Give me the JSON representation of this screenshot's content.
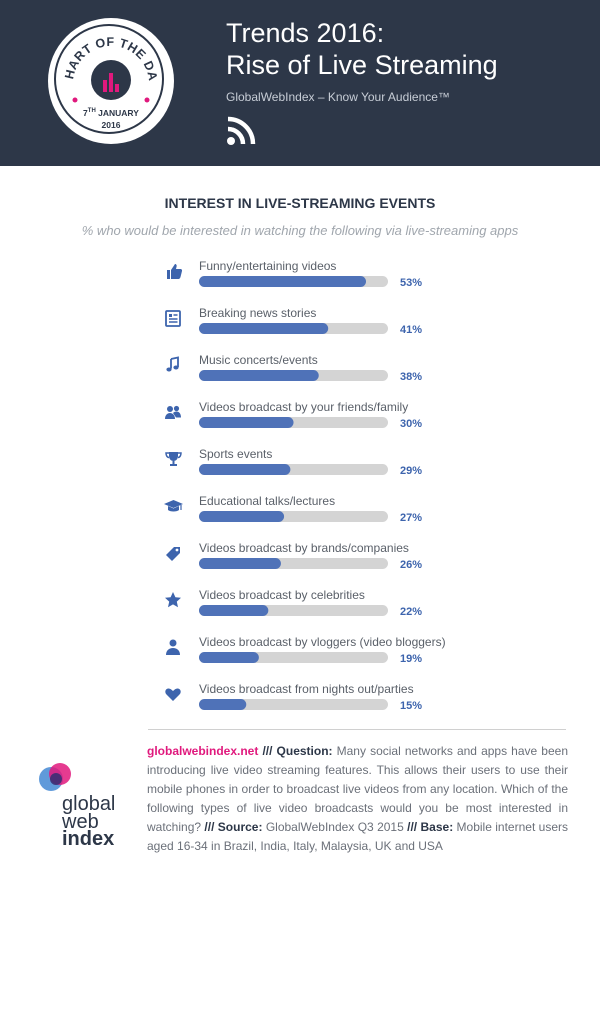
{
  "header": {
    "badge_text": "CHART OF THE DAY",
    "badge_day": "7",
    "badge_day_suffix": "TH",
    "badge_month": "JANUARY",
    "badge_year": "2016",
    "title_line1": "Trends 2016:",
    "title_line2": "Rise of Live Streaming",
    "subtitle": "GlobalWebIndex – Know Your Audience™",
    "rss_icon": "rss-icon"
  },
  "colors": {
    "header_bg": "#2d3748",
    "bar_fill": "#4f72b8",
    "bar_track": "#d4d4d4",
    "accent": "#e0197d",
    "value_text": "#3d64ad"
  },
  "chart_data": {
    "type": "bar",
    "orientation": "horizontal",
    "title": "INTEREST IN LIVE-STREAMING EVENTS",
    "subtitle": "% who would be interested in watching the following via live-streaming apps",
    "unit": "%",
    "xlim": [
      0,
      100
    ],
    "categories": [
      "Funny/entertaining videos",
      "Breaking news stories",
      "Music concerts/events",
      "Videos broadcast by your friends/family",
      "Sports events",
      "Educational talks/lectures",
      "Videos broadcast by brands/companies",
      "Videos broadcast by celebrities",
      "Videos broadcast by vloggers (video bloggers)",
      "Videos broadcast from nights out/parties"
    ],
    "values": [
      53,
      41,
      38,
      30,
      29,
      27,
      26,
      22,
      19,
      15
    ],
    "value_labels": [
      "53%",
      "41%",
      "38%",
      "30%",
      "29%",
      "27%",
      "26%",
      "22%",
      "19%",
      "15%"
    ],
    "icons": [
      "thumbs-up-icon",
      "newspaper-icon",
      "music-note-icon",
      "people-icon",
      "trophy-icon",
      "graduation-cap-icon",
      "tag-icon",
      "star-icon",
      "person-icon",
      "heart-icon"
    ]
  },
  "logo": {
    "line1": "global",
    "line2": "web",
    "line3": "index"
  },
  "footnote": {
    "site": "globalwebindex.net",
    "sep": " /// ",
    "question_label": "Question:",
    "question_text": " Many social networks and apps have been introducing live video streaming features. This allows their users to use their mobile phones in order to broadcast live videos from any location. Which of the following types of live video broadcasts would you be most interested in watching?",
    "source_label": "Source:",
    "source_text": " GlobalWebIndex Q3 2015",
    "base_label": "Base:",
    "base_text": " Mobile internet users aged 16-34 in Brazil, India, Italy, Malaysia, UK and USA"
  }
}
